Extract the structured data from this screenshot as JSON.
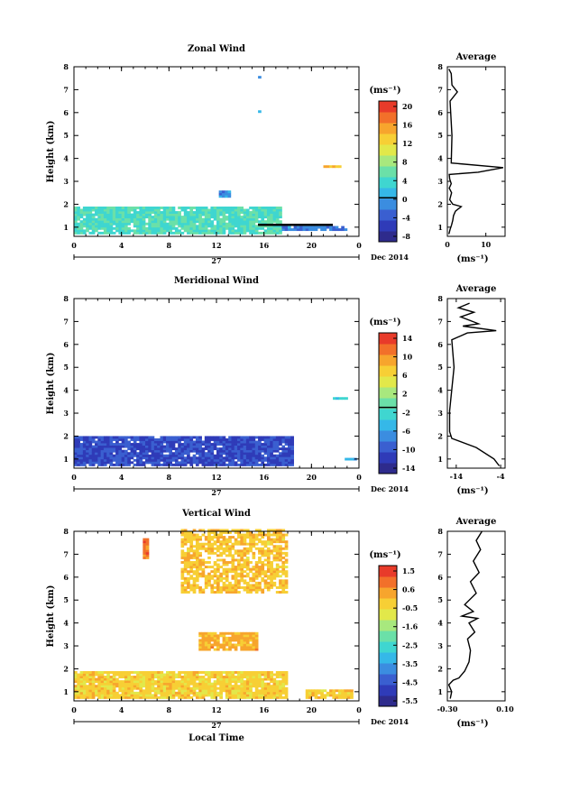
{
  "chart_data": [
    {
      "type": "heatmap",
      "title": "Zonal Wind",
      "ylabel": "Height (km)",
      "xlabel": "",
      "x_ticks": [
        "0",
        "4",
        "8",
        "12",
        "16",
        "20",
        "0"
      ],
      "xlim": [
        0,
        24
      ],
      "y_ticks": [
        "1",
        "2",
        "3",
        "4",
        "5",
        "6",
        "7",
        "8"
      ],
      "ylim": [
        0.6,
        8
      ],
      "date_label": "27",
      "month_label": "Dec 2014",
      "colorbar": {
        "unit": "(ms⁻¹)",
        "ticks": [
          "20",
          "16",
          "12",
          "8",
          "4",
          "0",
          "-4",
          "-8"
        ],
        "range": [
          -10,
          22
        ],
        "marker_value": 0
      },
      "data_regions": [
        {
          "x0": 0,
          "x1": 17.5,
          "y0": 0.7,
          "y1": 1.9,
          "value": 4.5
        },
        {
          "x0": 12.2,
          "x1": 13.2,
          "y0": 2.3,
          "y1": 2.6,
          "value": -1
        },
        {
          "x0": 17.5,
          "x1": 23,
          "y0": 0.85,
          "y1": 1.05,
          "value": -2
        },
        {
          "x0": 21,
          "x1": 22.5,
          "y0": 3.6,
          "y1": 3.7,
          "value": 14
        },
        {
          "x0": 15.5,
          "x1": 15.7,
          "y0": 7.5,
          "y1": 7.6,
          "value": 1
        },
        {
          "x0": 15.5,
          "x1": 15.7,
          "y0": 6.0,
          "y1": 6.1,
          "value": 2
        }
      ],
      "black_line": {
        "x0": 15.5,
        "x1": 21.8,
        "y": 1.1
      },
      "profile": {
        "title": "Average",
        "xlabel": "(ms⁻¹)",
        "x_ticks": [
          "0",
          "10"
        ],
        "xlim": [
          0,
          15
        ],
        "points": [
          [
            0.4,
            0.7
          ],
          [
            0.7,
            0.9
          ],
          [
            1.1,
            1.1
          ],
          [
            1.4,
            1.3
          ],
          [
            1.6,
            1.5
          ],
          [
            2.1,
            1.7
          ],
          [
            3.6,
            1.9
          ],
          [
            1.4,
            2.0
          ],
          [
            0.6,
            2.2
          ],
          [
            1.1,
            2.5
          ],
          [
            0.5,
            2.7
          ],
          [
            1.0,
            2.9
          ],
          [
            0.6,
            3.1
          ],
          [
            0.5,
            3.3
          ],
          [
            8.0,
            3.4
          ],
          [
            14.5,
            3.6
          ],
          [
            1.0,
            3.8
          ],
          [
            1.2,
            5.0
          ],
          [
            0.7,
            6.5
          ],
          [
            2.6,
            6.9
          ],
          [
            1.2,
            7.2
          ],
          [
            1.0,
            7.7
          ],
          [
            0.4,
            7.9
          ]
        ]
      }
    },
    {
      "type": "heatmap",
      "title": "Meridional Wind",
      "ylabel": "Height (km)",
      "xlabel": "",
      "x_ticks": [
        "0",
        "4",
        "8",
        "12",
        "16",
        "20",
        "0"
      ],
      "xlim": [
        0,
        24
      ],
      "y_ticks": [
        "1",
        "2",
        "3",
        "4",
        "5",
        "6",
        "7",
        "8"
      ],
      "ylim": [
        0.6,
        8
      ],
      "date_label": "27",
      "month_label": "Dec 2014",
      "colorbar": {
        "unit": "(ms⁻¹)",
        "ticks": [
          "14",
          "10",
          "6",
          "2",
          "-2",
          "-6",
          "-10",
          "-14"
        ],
        "range": [
          -16,
          18
        ],
        "marker_value": 0
      },
      "data_regions": [
        {
          "x0": 0,
          "x1": 18.5,
          "y0": 0.7,
          "y1": 2.0,
          "value": -11
        },
        {
          "x0": 21.8,
          "x1": 23,
          "y0": 3.6,
          "y1": 3.7,
          "value": -2
        },
        {
          "x0": 22.8,
          "x1": 23.6,
          "y0": 0.95,
          "y1": 1.05,
          "value": -4
        }
      ],
      "profile": {
        "title": "Average",
        "xlabel": "(ms⁻¹)",
        "x_ticks": [
          "-14",
          "-4"
        ],
        "xlim": [
          -16,
          -3
        ],
        "points": [
          [
            -4.3,
            0.7
          ],
          [
            -5.5,
            1.0
          ],
          [
            -9.5,
            1.5
          ],
          [
            -15.0,
            1.9
          ],
          [
            -15.5,
            2.2
          ],
          [
            -15.5,
            3.1
          ],
          [
            -14.5,
            5.0
          ],
          [
            -15.0,
            6.2
          ],
          [
            -11.5,
            6.5
          ],
          [
            -5.0,
            6.6
          ],
          [
            -12.5,
            6.8
          ],
          [
            -9.0,
            6.9
          ],
          [
            -13.0,
            7.2
          ],
          [
            -10.0,
            7.4
          ],
          [
            -13.5,
            7.6
          ],
          [
            -11.0,
            7.8
          ]
        ]
      }
    },
    {
      "type": "heatmap",
      "title": "Vertical Wind",
      "ylabel": "Height (km)",
      "xlabel": "Local Time",
      "x_ticks": [
        "0",
        "4",
        "8",
        "12",
        "16",
        "20",
        "0"
      ],
      "xlim": [
        0,
        24
      ],
      "y_ticks": [
        "1",
        "2",
        "3",
        "4",
        "5",
        "6",
        "7",
        "8"
      ],
      "ylim": [
        0.6,
        8
      ],
      "date_label": "27",
      "month_label": "Dec 2014",
      "colorbar": {
        "unit": "(ms⁻¹)",
        "ticks": [
          "1.5",
          "0.6",
          "-0.5",
          "-1.6",
          "-2.5",
          "-3.5",
          "-4.5",
          "-5.5"
        ],
        "range": [
          -6,
          2
        ],
        "marker_value": null
      },
      "data_regions": [
        {
          "x0": 0,
          "x1": 18,
          "y0": 0.7,
          "y1": 1.9,
          "value": -0.2
        },
        {
          "x0": 9,
          "x1": 18,
          "y0": 5.3,
          "y1": 8.0,
          "value": 0.0
        },
        {
          "x0": 10.5,
          "x1": 15.5,
          "y0": 2.8,
          "y1": 3.6,
          "value": 0.3
        },
        {
          "x0": 5.8,
          "x1": 6.2,
          "y0": 6.8,
          "y1": 7.6,
          "value": 1.0
        },
        {
          "x0": 19.5,
          "x1": 23.5,
          "y0": 0.7,
          "y1": 1.0,
          "value": -0.1
        }
      ],
      "profile": {
        "title": "Average",
        "xlabel": "(ms⁻¹)",
        "x_ticks": [
          "-0.30",
          "0.10"
        ],
        "xlim": [
          -0.3,
          0.1
        ],
        "points": [
          [
            -0.28,
            0.7
          ],
          [
            -0.27,
            1.0
          ],
          [
            -0.29,
            1.3
          ],
          [
            -0.26,
            1.5
          ],
          [
            -0.22,
            1.6
          ],
          [
            -0.18,
            1.9
          ],
          [
            -0.15,
            2.3
          ],
          [
            -0.14,
            2.8
          ],
          [
            -0.16,
            3.3
          ],
          [
            -0.11,
            3.6
          ],
          [
            -0.15,
            4.0
          ],
          [
            -0.09,
            4.2
          ],
          [
            -0.2,
            4.3
          ],
          [
            -0.12,
            4.5
          ],
          [
            -0.18,
            4.8
          ],
          [
            -0.1,
            5.3
          ],
          [
            -0.14,
            5.8
          ],
          [
            -0.08,
            6.2
          ],
          [
            -0.12,
            6.7
          ],
          [
            -0.07,
            7.2
          ],
          [
            -0.1,
            7.6
          ],
          [
            -0.06,
            8.0
          ]
        ]
      }
    }
  ]
}
